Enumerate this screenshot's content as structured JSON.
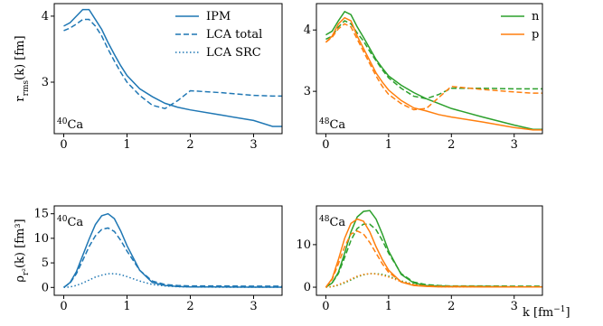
{
  "chart_data": [
    {
      "type": "line",
      "annotation": {
        "mass": "40",
        "element": "Ca"
      },
      "ylabel": {
        "main": "r",
        "sub": "rms",
        "rest": "(k) [fm]"
      },
      "x": [
        0,
        0.1,
        0.2,
        0.3,
        0.4,
        0.5,
        0.6,
        0.7,
        0.8,
        0.9,
        1.0,
        1.2,
        1.4,
        1.6,
        1.8,
        2.0,
        2.5,
        3.0,
        3.3,
        3.45
      ],
      "xlim": [
        -0.15,
        3.45
      ],
      "xticks": [
        0,
        1,
        2,
        3
      ],
      "ylim": [
        2.22,
        4.19
      ],
      "yticks": [
        3,
        4
      ],
      "legend": "upper right",
      "series": [
        {
          "color": "#1f77b4",
          "style": "solid",
          "values": [
            3.85,
            3.9,
            4.0,
            4.1,
            4.1,
            3.95,
            3.8,
            3.6,
            3.42,
            3.25,
            3.1,
            2.9,
            2.78,
            2.68,
            2.62,
            2.58,
            2.5,
            2.42,
            2.33,
            2.33
          ]
        },
        {
          "color": "#1f77b4",
          "style": "dashed",
          "values": [
            3.78,
            3.82,
            3.88,
            3.95,
            3.95,
            3.85,
            3.7,
            3.5,
            3.32,
            3.15,
            3.0,
            2.8,
            2.65,
            2.6,
            2.72,
            2.87,
            2.84,
            2.8,
            2.79,
            2.79
          ]
        }
      ]
    },
    {
      "type": "line",
      "annotation": {
        "mass": "48",
        "element": "Ca"
      },
      "x": [
        0,
        0.1,
        0.2,
        0.3,
        0.4,
        0.5,
        0.6,
        0.7,
        0.8,
        0.9,
        1.0,
        1.2,
        1.4,
        1.6,
        1.8,
        2.0,
        2.5,
        3.0,
        3.3,
        3.45
      ],
      "xlim": [
        -0.15,
        3.45
      ],
      "xticks": [
        0,
        1,
        2,
        3
      ],
      "ylim": [
        2.31,
        4.43
      ],
      "yticks": [
        3,
        4
      ],
      "legend": "upper right",
      "series": [
        {
          "name": "n",
          "color": "#2ca02c",
          "style": "solid",
          "values": [
            3.92,
            3.98,
            4.15,
            4.3,
            4.25,
            4.05,
            3.88,
            3.7,
            3.52,
            3.38,
            3.25,
            3.1,
            2.98,
            2.88,
            2.8,
            2.72,
            2.58,
            2.45,
            2.38,
            2.38
          ]
        },
        {
          "color": "#2ca02c",
          "style": "dashed",
          "values": [
            3.85,
            3.9,
            4.05,
            4.15,
            4.1,
            3.95,
            3.82,
            3.65,
            3.5,
            3.35,
            3.22,
            3.05,
            2.92,
            2.88,
            2.95,
            3.05,
            3.05,
            3.04,
            3.04,
            3.04
          ]
        },
        {
          "name": "p",
          "color": "#ff7f0e",
          "style": "solid",
          "values": [
            3.8,
            3.9,
            4.1,
            4.2,
            4.15,
            3.9,
            3.7,
            3.5,
            3.3,
            3.15,
            3.02,
            2.85,
            2.73,
            2.68,
            2.62,
            2.58,
            2.5,
            2.41,
            2.37,
            2.37
          ]
        },
        {
          "color": "#ff7f0e",
          "style": "dashed",
          "values": [
            3.8,
            3.88,
            4.02,
            4.1,
            4.05,
            3.85,
            3.65,
            3.45,
            3.25,
            3.08,
            2.95,
            2.8,
            2.7,
            2.72,
            2.9,
            3.08,
            3.03,
            2.99,
            2.97,
            2.97
          ]
        }
      ]
    },
    {
      "type": "line",
      "annotation": {
        "mass": "40",
        "element": "Ca"
      },
      "ylabel": {
        "main": "ρ",
        "sub": "r²",
        "rest": "(k) [fm³]"
      },
      "x": [
        0,
        0.1,
        0.2,
        0.3,
        0.4,
        0.5,
        0.6,
        0.7,
        0.8,
        0.9,
        1.0,
        1.2,
        1.4,
        1.6,
        1.8,
        2.0,
        2.5,
        3.0,
        3.3,
        3.45
      ],
      "xlim": [
        -0.15,
        3.45
      ],
      "xticks": [
        0,
        1,
        2,
        3
      ],
      "ylim": [
        -1.6,
        16.6
      ],
      "yticks": [
        0,
        5,
        10,
        15
      ],
      "series": [
        {
          "name": "IPM",
          "color": "#1f77b4",
          "style": "solid",
          "values": [
            0,
            1,
            3.2,
            6.5,
            9.8,
            12.8,
            14.6,
            15,
            14,
            11.5,
            8.5,
            3.5,
            1,
            0.4,
            0.2,
            0.1,
            0.1,
            0.05,
            0.05,
            0.05
          ]
        },
        {
          "name": "LCA total",
          "color": "#1f77b4",
          "style": "dashed",
          "values": [
            0,
            0.9,
            2.8,
            5.5,
            8.3,
            10.5,
            11.8,
            12.1,
            11.4,
            9.6,
            7.4,
            3.5,
            1.3,
            0.6,
            0.4,
            0.3,
            0.3,
            0.25,
            0.25,
            0.25
          ]
        },
        {
          "name": "LCA SRC",
          "color": "#1f77b4",
          "style": "dotted",
          "values": [
            0,
            0.1,
            0.4,
            0.9,
            1.5,
            2.1,
            2.5,
            2.8,
            2.8,
            2.6,
            2.2,
            1.3,
            0.6,
            0.3,
            0.15,
            0.1,
            0.05,
            0.05,
            0.05,
            0.05
          ]
        }
      ]
    },
    {
      "type": "line",
      "annotation": {
        "mass": "48",
        "element": "Ca"
      },
      "xlabel": {
        "main": "k",
        "rest": " [fm",
        "sup": "−1",
        "close": "]"
      },
      "x": [
        0,
        0.1,
        0.2,
        0.3,
        0.4,
        0.5,
        0.6,
        0.7,
        0.8,
        0.9,
        1.0,
        1.2,
        1.4,
        1.6,
        1.8,
        2.0,
        2.5,
        3.0,
        3.3,
        3.45
      ],
      "xlim": [
        -0.15,
        3.45
      ],
      "xticks": [
        0,
        1,
        2,
        3
      ],
      "ylim": [
        -1.9,
        19.1
      ],
      "yticks": [
        0,
        10
      ],
      "series": [
        {
          "color": "#2ca02c",
          "style": "solid",
          "values": [
            0,
            1,
            3.5,
            8,
            13,
            16.5,
            17.8,
            18,
            16,
            12.5,
            8.5,
            3,
            1,
            0.4,
            0.3,
            0.2,
            0.2,
            0.1,
            0.1,
            0.1
          ]
        },
        {
          "color": "#2ca02c",
          "style": "dashed",
          "values": [
            0,
            1,
            3.2,
            7,
            11,
            13.8,
            14.8,
            14.8,
            13.5,
            11,
            8,
            3.2,
            1.2,
            0.6,
            0.4,
            0.3,
            0.3,
            0.25,
            0.25,
            0.25
          ]
        },
        {
          "color": "#2ca02c",
          "style": "dotted",
          "values": [
            0,
            0.1,
            0.5,
            1,
            1.7,
            2.4,
            2.9,
            3.2,
            3.2,
            3,
            2.6,
            1.5,
            0.7,
            0.3,
            0.15,
            0.1,
            0.05,
            0.05,
            0.05,
            0.05
          ]
        },
        {
          "color": "#ff7f0e",
          "style": "solid",
          "values": [
            0,
            2,
            6.5,
            11.5,
            15,
            16,
            15.5,
            13,
            9.5,
            6.5,
            4,
            1.2,
            0.4,
            0.2,
            0.1,
            0.1,
            0.05,
            0.05,
            0.05,
            0.05
          ]
        },
        {
          "color": "#ff7f0e",
          "style": "dashed",
          "values": [
            0,
            1.8,
            5.5,
            9.5,
            12.5,
            13.2,
            12.5,
            10.5,
            8,
            5.5,
            3.5,
            1.3,
            0.5,
            0.3,
            0.2,
            0.2,
            0.15,
            0.1,
            0.1,
            0.1
          ]
        },
        {
          "color": "#ff7f0e",
          "style": "dotted",
          "values": [
            0,
            0.15,
            0.6,
            1.2,
            1.9,
            2.6,
            3,
            3.2,
            3.1,
            2.8,
            2.4,
            1.3,
            0.6,
            0.25,
            0.12,
            0.08,
            0.05,
            0.05,
            0.05,
            0.05
          ]
        }
      ]
    }
  ]
}
